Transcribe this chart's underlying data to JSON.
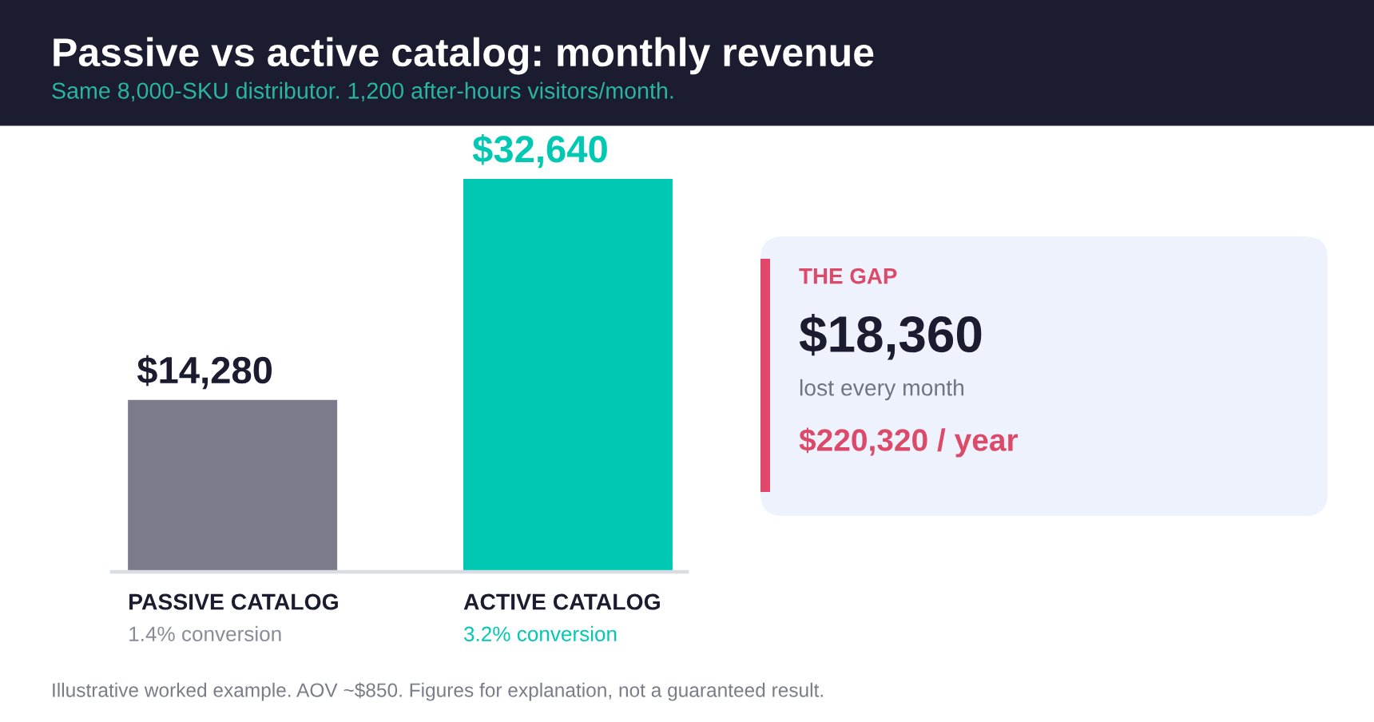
{
  "chart_data": [
    {
      "type": "bar",
      "title": "Passive vs active catalog: monthly revenue",
      "subtitle": "Same 8,000-SKU distributor. 1,200 after-hours visitors/month.",
      "categories": [
        "PASSIVE CATALOG",
        "ACTIVE CATALOG"
      ],
      "values": [
        14280,
        32640
      ],
      "colors": [
        "#7a7c8b",
        "#00c8b3"
      ],
      "value_labels": [
        "$14,280",
        "$32,640"
      ],
      "annotations": [
        "1.4% conversion",
        "3.2% conversion",
        "Illustrative worked example. AOV ~$850. Figures for explanation, not a guaranteed result."
      ]
    },
    {
      "type": "other",
      "title": "THE GAP",
      "annotations": [
        "$18,360",
        "lost every month",
        "$220,320 / year"
      ]
    }
  ]
}
